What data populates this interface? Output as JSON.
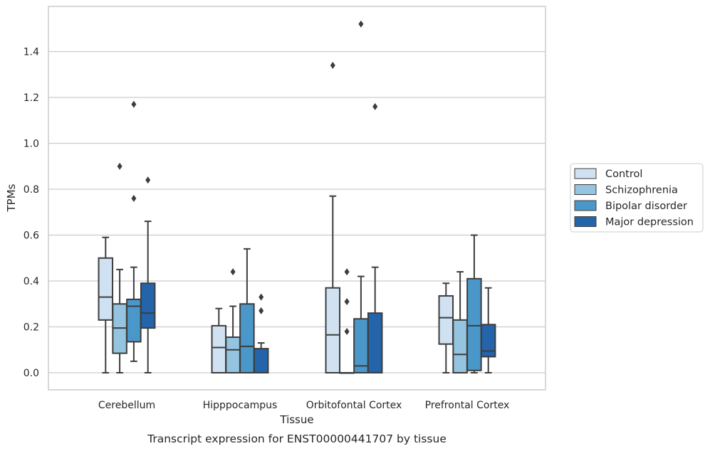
{
  "caption": "Transcript expression for ENST00000441707 by tissue",
  "chart_data": {
    "type": "box",
    "title": "",
    "xlabel": "Tissue",
    "ylabel": "TPMs",
    "ylim": [
      -0.075,
      1.6
    ],
    "yticks": [
      0.0,
      0.2,
      0.4,
      0.6,
      0.8,
      1.0,
      1.2,
      1.4
    ],
    "ytick_labels": [
      "0.0",
      "0.2",
      "0.4",
      "0.6",
      "0.8",
      "1.0",
      "1.2",
      "1.4"
    ],
    "grid": "horizontal",
    "legend_position": "outside-right",
    "categories": [
      "Cerebellum",
      "Hipppocampus",
      "Orbitofontal Cortex",
      "Prefrontal Cortex"
    ],
    "series": [
      {
        "name": "Control",
        "color": "#d0e1f2",
        "boxes": [
          {
            "whisker_low": 0.0,
            "q1": 0.23,
            "median": 0.33,
            "q3": 0.5,
            "whisker_high": 0.59,
            "outliers": []
          },
          {
            "whisker_low": 0.0,
            "q1": 0.0,
            "median": 0.11,
            "q3": 0.205,
            "whisker_high": 0.28,
            "outliers": []
          },
          {
            "whisker_low": 0.0,
            "q1": 0.0,
            "median": 0.165,
            "q3": 0.37,
            "whisker_high": 0.77,
            "outliers": [
              1.34
            ]
          },
          {
            "whisker_low": 0.0,
            "q1": 0.125,
            "median": 0.24,
            "q3": 0.335,
            "whisker_high": 0.39,
            "outliers": []
          }
        ]
      },
      {
        "name": "Schizophrenia",
        "color": "#94c4df",
        "boxes": [
          {
            "whisker_low": 0.0,
            "q1": 0.085,
            "median": 0.195,
            "q3": 0.3,
            "whisker_high": 0.45,
            "outliers": [
              0.9
            ]
          },
          {
            "whisker_low": 0.0,
            "q1": 0.0,
            "median": 0.1,
            "q3": 0.155,
            "whisker_high": 0.29,
            "outliers": [
              0.44
            ]
          },
          {
            "whisker_low": 0.0,
            "q1": 0.0,
            "median": 0.0,
            "q3": 0.0,
            "whisker_high": 0.0,
            "outliers": [
              0.44,
              0.31,
              0.18
            ]
          },
          {
            "whisker_low": 0.0,
            "q1": 0.0,
            "median": 0.08,
            "q3": 0.23,
            "whisker_high": 0.44,
            "outliers": []
          }
        ]
      },
      {
        "name": "Bipolar disorder",
        "color": "#4a98c9",
        "boxes": [
          {
            "whisker_low": 0.05,
            "q1": 0.135,
            "median": 0.29,
            "q3": 0.32,
            "whisker_high": 0.46,
            "outliers": [
              1.17,
              0.76
            ]
          },
          {
            "whisker_low": 0.0,
            "q1": 0.0,
            "median": 0.115,
            "q3": 0.3,
            "whisker_high": 0.54,
            "outliers": []
          },
          {
            "whisker_low": 0.0,
            "q1": 0.0,
            "median": 0.03,
            "q3": 0.235,
            "whisker_high": 0.42,
            "outliers": [
              1.52
            ]
          },
          {
            "whisker_low": 0.0,
            "q1": 0.01,
            "median": 0.205,
            "q3": 0.41,
            "whisker_high": 0.6,
            "outliers": []
          }
        ]
      },
      {
        "name": "Major depression",
        "color": "#2464ab",
        "boxes": [
          {
            "whisker_low": 0.0,
            "q1": 0.195,
            "median": 0.26,
            "q3": 0.39,
            "whisker_high": 0.66,
            "outliers": [
              0.84
            ]
          },
          {
            "whisker_low": 0.0,
            "q1": 0.0,
            "median": 0.0,
            "q3": 0.105,
            "whisker_high": 0.13,
            "outliers": [
              0.33,
              0.27
            ]
          },
          {
            "whisker_low": 0.0,
            "q1": 0.0,
            "median": 0.0,
            "q3": 0.26,
            "whisker_high": 0.46,
            "outliers": [
              1.16
            ]
          },
          {
            "whisker_low": 0.0,
            "q1": 0.07,
            "median": 0.095,
            "q3": 0.21,
            "whisker_high": 0.37,
            "outliers": []
          }
        ]
      }
    ]
  }
}
